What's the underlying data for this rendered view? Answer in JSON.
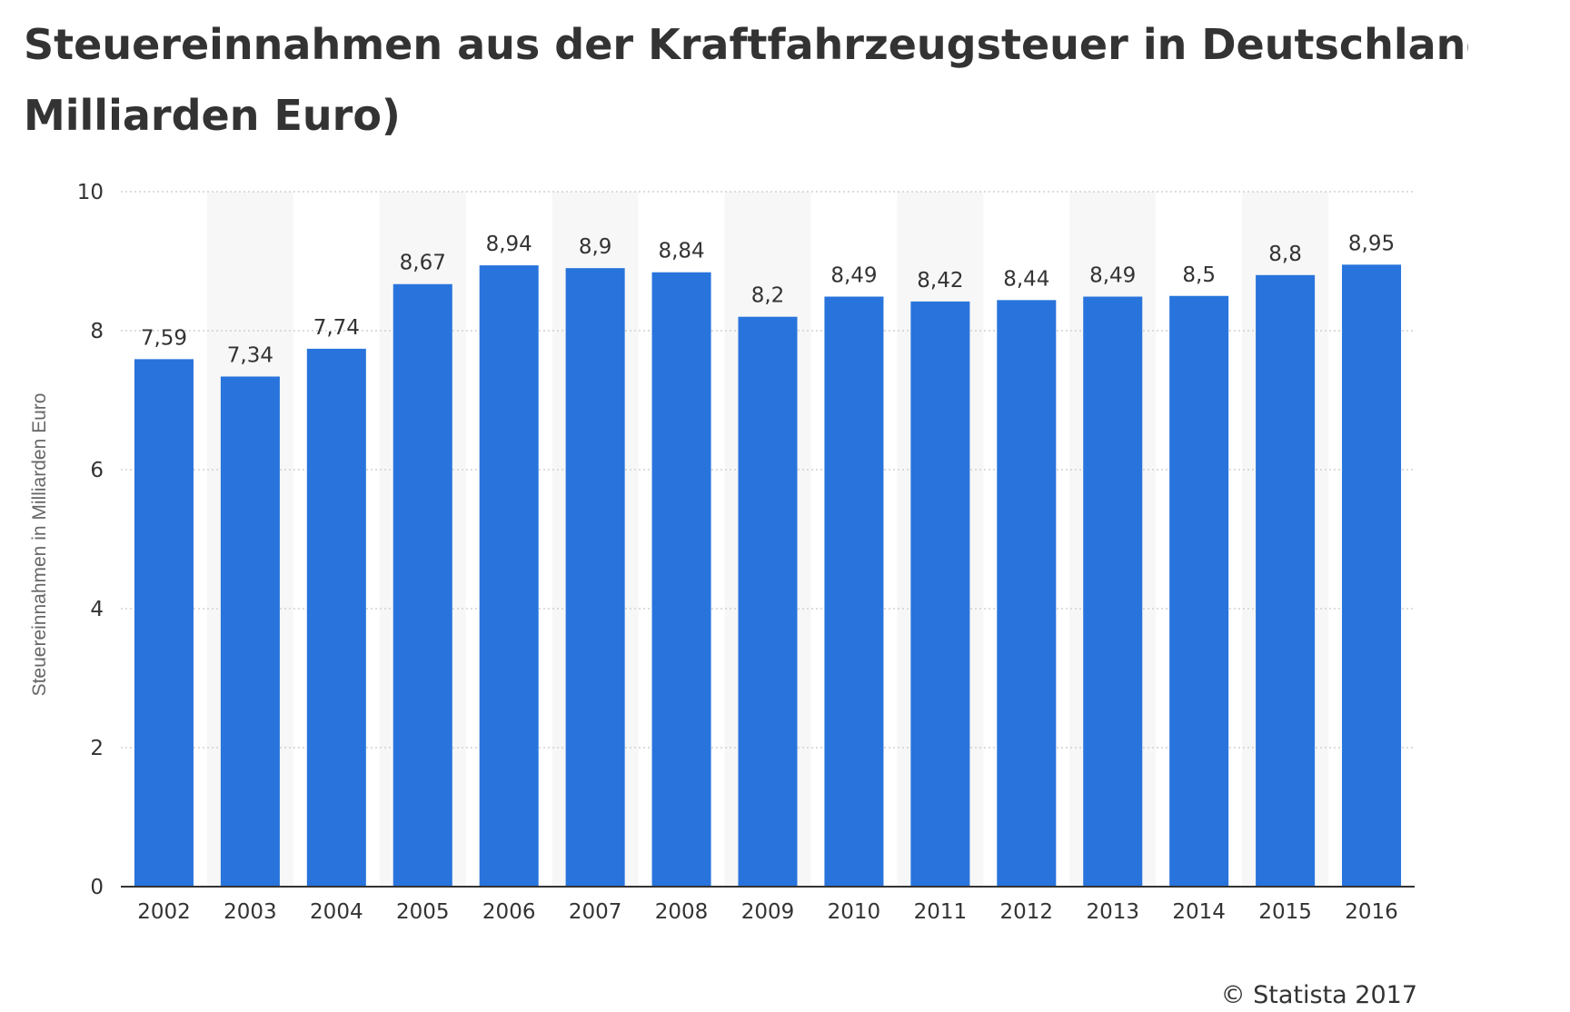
{
  "title": {
    "line1": "Steuereinnahmen aus der Kraftfahrzeugsteuer in Deutschland v",
    "line2": "Milliarden Euro)"
  },
  "credit": "© Statista 2017",
  "colors": {
    "bar": "#2874DC",
    "band": "#F7F7F7",
    "grid": "#C8C8C8",
    "axis": "#333333"
  },
  "chart_data": {
    "type": "bar",
    "title": "Steuereinnahmen aus der Kraftfahrzeugsteuer in Deutschland v Milliarden Euro)",
    "xlabel": "",
    "ylabel": "Steuereinnahmen in Milliarden Euro",
    "ylim": [
      0,
      10
    ],
    "yticks": [
      0,
      2,
      4,
      6,
      8,
      10
    ],
    "grid": true,
    "categories": [
      "2002",
      "2003",
      "2004",
      "2005",
      "2006",
      "2007",
      "2008",
      "2009",
      "2010",
      "2011",
      "2012",
      "2013",
      "2014",
      "2015",
      "2016"
    ],
    "values": [
      7.59,
      7.34,
      7.74,
      8.67,
      8.94,
      8.9,
      8.84,
      8.2,
      8.49,
      8.42,
      8.44,
      8.49,
      8.5,
      8.8,
      8.95
    ],
    "value_labels": [
      "7,59",
      "7,34",
      "7,74",
      "8,67",
      "8,94",
      "8,9",
      "8,84",
      "8,2",
      "8,49",
      "8,42",
      "8,44",
      "8,49",
      "8,5",
      "8,8",
      "8,95"
    ]
  }
}
